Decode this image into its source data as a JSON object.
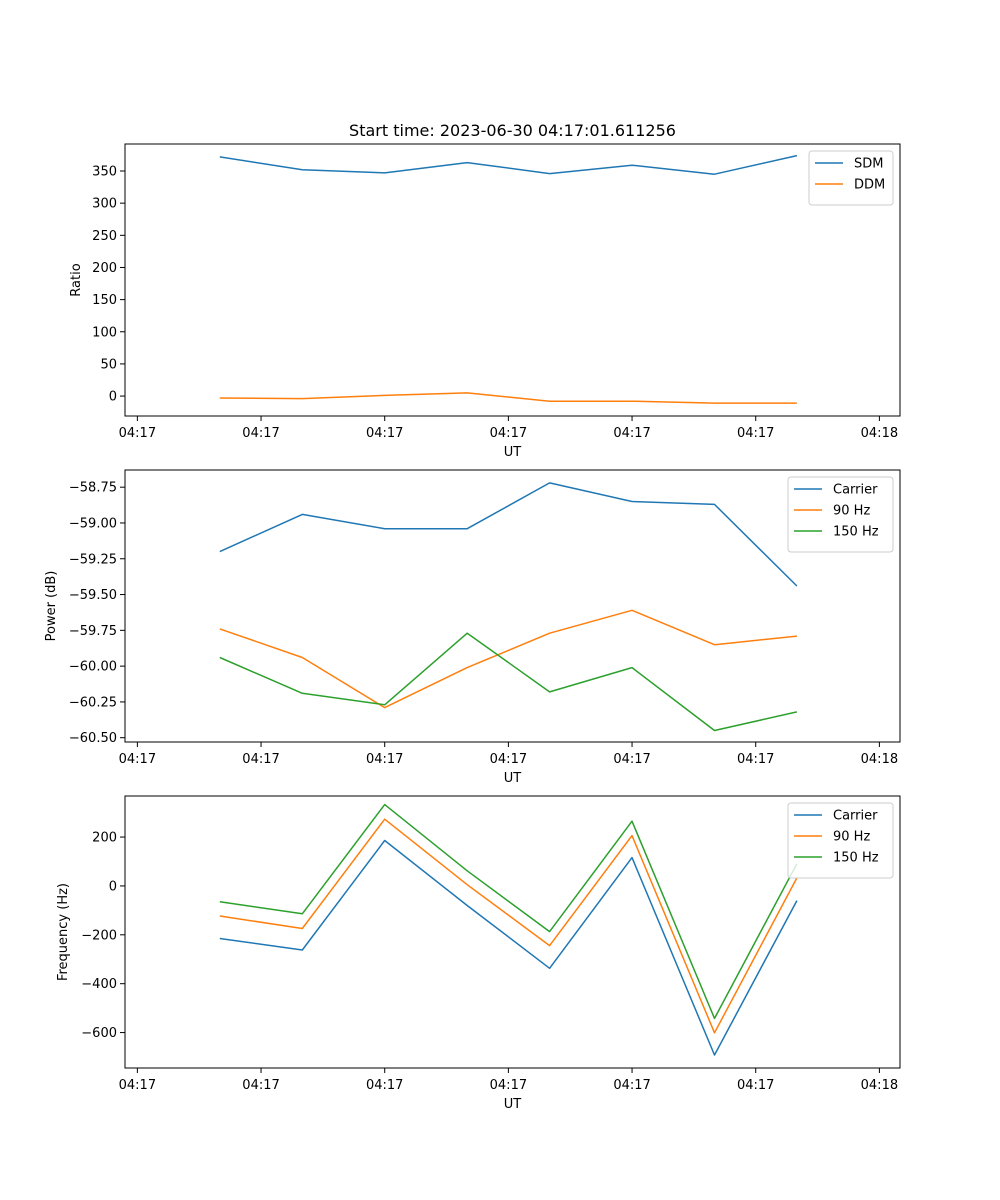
{
  "figure_title": "Start time: 2023-06-30 04:17:01.611256",
  "colors": {
    "blue": "#1f77b4",
    "orange": "#ff7f0e",
    "green": "#2ca02c"
  },
  "chart_data": [
    {
      "type": "line",
      "title": "Start time: 2023-06-30 04:17:01.611256",
      "xlabel": "UT",
      "ylabel": "Ratio",
      "x_tick_labels": [
        "04:17",
        "04:17",
        "04:17",
        "04:17",
        "04:17",
        "04:17",
        "04:18"
      ],
      "y_ticks": [
        0,
        50,
        100,
        150,
        200,
        250,
        300,
        350
      ],
      "ylim": [
        -31,
        392
      ],
      "x": [
        1,
        2,
        3,
        4,
        5,
        6,
        7,
        8
      ],
      "xlim": [
        -0.15,
        9.25
      ],
      "x_tick_positions": [
        0,
        1.5,
        3,
        4.5,
        6,
        7.5,
        9
      ],
      "legend_position": "upper right",
      "series": [
        {
          "name": "SDM",
          "color": "#1f77b4",
          "values": [
            372,
            352,
            347,
            363,
            346,
            359,
            345,
            374
          ]
        },
        {
          "name": "DDM",
          "color": "#ff7f0e",
          "values": [
            -3,
            -4,
            1,
            5,
            -8,
            -8,
            -11,
            -11
          ]
        }
      ]
    },
    {
      "type": "line",
      "xlabel": "UT",
      "ylabel": "Power (dB)",
      "x_tick_labels": [
        "04:17",
        "04:17",
        "04:17",
        "04:17",
        "04:17",
        "04:17",
        "04:18"
      ],
      "y_ticks": [
        -60.5,
        -60.25,
        -60.0,
        -59.75,
        -59.5,
        -59.25,
        -59.0,
        -58.75
      ],
      "y_tick_labels": [
        "−60.50",
        "−60.25",
        "−60.00",
        "−59.75",
        "−59.50",
        "−59.25",
        "−59.00",
        "−58.75"
      ],
      "ylim": [
        -60.53,
        -58.63
      ],
      "x": [
        1,
        2,
        3,
        4,
        5,
        6,
        7,
        8
      ],
      "xlim": [
        -0.15,
        9.25
      ],
      "x_tick_positions": [
        0,
        1.5,
        3,
        4.5,
        6,
        7.5,
        9
      ],
      "legend_position": "upper right",
      "series": [
        {
          "name": "Carrier",
          "color": "#1f77b4",
          "values": [
            -59.2,
            -58.94,
            -59.04,
            -59.04,
            -58.72,
            -58.85,
            -58.87,
            -59.44
          ]
        },
        {
          "name": "90 Hz",
          "color": "#ff7f0e",
          "values": [
            -59.74,
            -59.94,
            -60.29,
            -60.01,
            -59.77,
            -59.61,
            -59.85,
            -59.79
          ]
        },
        {
          "name": "150 Hz",
          "color": "#2ca02c",
          "values": [
            -59.94,
            -60.19,
            -60.27,
            -59.77,
            -60.18,
            -60.01,
            -60.45,
            -60.32
          ]
        }
      ]
    },
    {
      "type": "line",
      "xlabel": "UT",
      "ylabel": "Frequency (Hz)",
      "x_tick_labels": [
        "04:17",
        "04:17",
        "04:17",
        "04:17",
        "04:17",
        "04:17",
        "04:18"
      ],
      "y_ticks": [
        -600,
        -400,
        -200,
        0,
        200
      ],
      "y_tick_labels": [
        "−600",
        "−400",
        "−200",
        "0",
        "200"
      ],
      "ylim": [
        -745,
        368
      ],
      "x": [
        1,
        2,
        3,
        4,
        5,
        6,
        7,
        8
      ],
      "xlim": [
        -0.15,
        9.25
      ],
      "x_tick_positions": [
        0,
        1.5,
        3,
        4.5,
        6,
        7.5,
        9
      ],
      "legend_position": "upper right",
      "series": [
        {
          "name": "Carrier",
          "color": "#1f77b4",
          "values": [
            -215,
            -262,
            186,
            -80,
            -337,
            116,
            -692,
            -60
          ]
        },
        {
          "name": "90 Hz",
          "color": "#ff7f0e",
          "values": [
            -123,
            -174,
            273,
            5,
            -244,
            206,
            -601,
            33
          ]
        },
        {
          "name": "150 Hz",
          "color": "#2ca02c",
          "values": [
            -65,
            -114,
            333,
            62,
            -187,
            265,
            -542,
            91
          ]
        }
      ]
    }
  ]
}
